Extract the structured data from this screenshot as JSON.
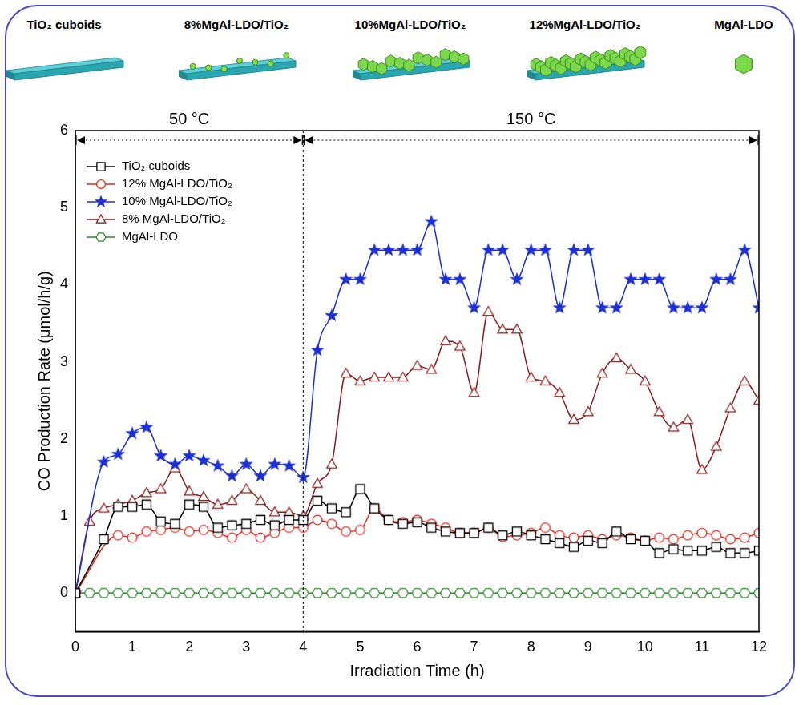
{
  "illustration": {
    "labels": [
      "TiO₂ cuboids",
      "8%MgAl-LDO/TiO₂",
      "10%MgAl-LDO/TiO₂",
      "12%MgAl-LDO/TiO₂",
      "MgAl-LDO"
    ]
  },
  "chart_data": {
    "type": "line",
    "x_label": "Irradiation Time (h)",
    "y_label": "CO Production Rate (μmol/h/g)",
    "x": [
      0,
      0.25,
      0.5,
      0.75,
      1,
      1.25,
      1.5,
      1.75,
      2,
      2.25,
      2.5,
      2.75,
      3,
      3.25,
      3.5,
      3.75,
      4,
      4.25,
      4.5,
      4.75,
      5,
      5.25,
      5.5,
      5.75,
      6,
      6.25,
      6.5,
      6.75,
      7,
      7.25,
      7.5,
      7.75,
      8,
      8.25,
      8.5,
      8.75,
      9,
      9.25,
      9.5,
      9.75,
      10,
      10.25,
      10.5,
      10.75,
      11,
      11.25,
      11.5,
      11.75,
      12
    ],
    "xlim": [
      0,
      12
    ],
    "xticks": [
      0,
      1,
      2,
      3,
      4,
      5,
      6,
      7,
      8,
      9,
      10,
      11,
      12
    ],
    "ylim": [
      -0.5,
      6
    ],
    "yticks": [
      0,
      1,
      2,
      3,
      4,
      5,
      6
    ],
    "grid": false,
    "legend": "upper left",
    "regions": [
      {
        "label": "50 °C",
        "x": [
          0,
          4
        ]
      },
      {
        "label": "150 °C",
        "x": [
          4,
          12
        ]
      }
    ],
    "series": [
      {
        "name": "TiO₂ cuboids",
        "color": "#000000",
        "marker": "square",
        "values": [
          0,
          null,
          0.7,
          1.12,
          1.12,
          1.15,
          0.93,
          0.9,
          1.15,
          1.12,
          0.85,
          0.88,
          0.9,
          0.95,
          0.88,
          0.95,
          0.95,
          1.2,
          1.1,
          1.05,
          1.35,
          1.1,
          0.95,
          0.9,
          0.92,
          0.85,
          0.8,
          0.78,
          0.78,
          0.85,
          0.75,
          0.8,
          0.75,
          0.7,
          0.65,
          0.6,
          0.68,
          0.65,
          0.8,
          0.7,
          0.68,
          0.52,
          0.57,
          0.55,
          0.55,
          0.6,
          0.52,
          0.52,
          0.55
        ]
      },
      {
        "name": "12% MgAl-LDO/TiO₂",
        "color": "#e8281c",
        "marker": "circle",
        "values": [
          0,
          null,
          null,
          0.75,
          0.72,
          0.8,
          0.82,
          0.85,
          0.8,
          0.82,
          0.78,
          0.72,
          0.82,
          0.72,
          0.78,
          0.85,
          0.85,
          0.95,
          0.9,
          0.8,
          0.82,
          1.1,
          0.95,
          0.92,
          0.95,
          0.9,
          0.85,
          0.78,
          0.78,
          0.85,
          0.73,
          0.75,
          0.78,
          0.85,
          0.75,
          0.72,
          0.75,
          0.7,
          0.75,
          0.72,
          0.68,
          0.72,
          0.7,
          0.75,
          0.78,
          0.75,
          0.7,
          0.72,
          0.78
        ]
      },
      {
        "name": "10% MgAl-LDO/TiO₂",
        "color": "#1c2fd8",
        "marker": "star",
        "values": [
          0,
          null,
          1.7,
          1.8,
          2.07,
          2.15,
          1.78,
          1.67,
          1.78,
          1.72,
          1.65,
          1.52,
          1.67,
          1.52,
          1.67,
          1.65,
          1.5,
          3.15,
          3.6,
          4.07,
          4.07,
          4.45,
          4.45,
          4.45,
          4.45,
          4.82,
          4.07,
          4.07,
          3.7,
          4.45,
          4.45,
          4.07,
          4.45,
          4.45,
          3.7,
          4.45,
          4.45,
          3.7,
          3.7,
          4.07,
          4.07,
          4.07,
          3.7,
          3.7,
          3.7,
          4.07,
          4.07,
          4.45,
          3.7
        ]
      },
      {
        "name": "8% MgAl-LDO/TiO₂",
        "color": "#8b1a1a",
        "marker": "triangle",
        "values": [
          0,
          0.93,
          1.1,
          1.15,
          1.2,
          1.3,
          1.35,
          1.62,
          1.32,
          1.25,
          1.15,
          1.2,
          1.35,
          1.2,
          1.05,
          1.05,
          1.0,
          1.42,
          1.67,
          2.85,
          2.75,
          2.8,
          2.8,
          2.8,
          2.95,
          2.9,
          3.27,
          3.2,
          2.6,
          3.65,
          3.42,
          3.42,
          2.8,
          2.75,
          2.6,
          2.25,
          2.35,
          2.85,
          3.05,
          2.9,
          2.75,
          2.35,
          2.15,
          2.25,
          1.6,
          1.9,
          2.4,
          2.75,
          2.5
        ]
      },
      {
        "name": "MgAl-LDO",
        "color": "#2a8a2a",
        "marker": "hexagon",
        "values": [
          0,
          0,
          0,
          0,
          0,
          0,
          0,
          0,
          0,
          0,
          0,
          0,
          0,
          0,
          0,
          0,
          0,
          0,
          0,
          0,
          0,
          0,
          0,
          0,
          0,
          0,
          0,
          0,
          0,
          0,
          0,
          0,
          0,
          0,
          0,
          0,
          0,
          0,
          0,
          0,
          0,
          0,
          0,
          0,
          0,
          0,
          0,
          0,
          0
        ]
      }
    ]
  }
}
